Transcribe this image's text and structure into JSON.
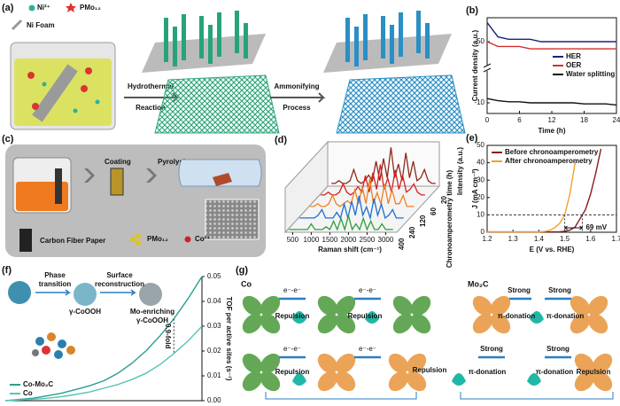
{
  "panel_a": {
    "label": "(a)",
    "legend": [
      "Ni²⁺",
      "PMo₁₂",
      "Ni Foam"
    ],
    "step_1": [
      "Hydrothermal",
      "Reaction"
    ],
    "step_2": [
      "Ammonifying",
      "Process"
    ]
  },
  "panel_c": {
    "label": "(c)",
    "steps": [
      "Coating",
      "Pyrolysis"
    ],
    "legend": [
      "Carbon Fiber Paper",
      "PMo₁₂",
      "Co²⁺"
    ]
  },
  "panel_f": {
    "label": "(f)",
    "step_1": [
      "Phase",
      "transition"
    ],
    "step_2": [
      "Surface",
      "reconstruction"
    ],
    "product_1": "γ-CoOOH",
    "product_2": [
      "Mo-enriching",
      "γ-CoOOH"
    ]
  },
  "panel_g": {
    "label": "(g)",
    "titles": [
      "Co",
      "Mo₂C"
    ],
    "electron_pair": "e⁻-e⁻",
    "repulsion": "Repulsion",
    "strong": "Strong",
    "donation": "π-donation"
  },
  "chart_data": [
    {
      "type": "line",
      "label": "(b)",
      "xlabel": "Time (h)",
      "ylabel": "Current density (a.u.)",
      "x": [
        0,
        2,
        4,
        6,
        8,
        10,
        12,
        14,
        16,
        18,
        20,
        22,
        24
      ],
      "xlim": [
        0,
        24
      ],
      "xticks": [
        0,
        6,
        12,
        18,
        24
      ],
      "ylim": [
        -15,
        60
      ],
      "ybreak": [
        5,
        40
      ],
      "yticks": [
        -10,
        50
      ],
      "legend": "center right",
      "series": [
        {
          "name": "HER",
          "color": "#1a237e",
          "values": [
            58,
            52,
            51,
            51,
            51,
            50,
            50,
            50,
            50,
            50,
            50,
            50,
            50
          ]
        },
        {
          "name": "OER",
          "color": "#d32f2f",
          "values": [
            50,
            48,
            48,
            48,
            47,
            47,
            47,
            47,
            47,
            47,
            47,
            47,
            47
          ]
        },
        {
          "name": "Water splitting",
          "color": "#111111",
          "values": [
            -8,
            -9,
            -9.5,
            -9.5,
            -10,
            -10,
            -10,
            -10,
            -10,
            -10.5,
            -10.5,
            -10.5,
            -11
          ]
        }
      ]
    },
    {
      "type": "waterfall",
      "label": "(d)",
      "xlabel": "Raman shift (cm⁻¹)",
      "ylabel": "Intensity (a.u.)",
      "zlabel": "Chronoamperometry time (h)",
      "x": [
        400,
        500,
        600,
        700,
        800,
        900,
        1000,
        1100,
        1200,
        1300,
        1400,
        1500,
        1600,
        1700,
        1800,
        1900,
        2000,
        2100,
        2200,
        2300,
        2400,
        2500,
        2600,
        2700,
        2800,
        2900,
        3000,
        3100,
        3200
      ],
      "xlim": [
        300,
        3300
      ],
      "xticks": [
        500,
        1000,
        1500,
        2000,
        2500,
        3000
      ],
      "ylim": [
        0,
        16
      ],
      "zticks": [
        400,
        240,
        120,
        60,
        20
      ],
      "series": [
        {
          "color": "#2e9e3e",
          "values": [
            1,
            1,
            1,
            1,
            1,
            1,
            3,
            1,
            1,
            1,
            2,
            1,
            4,
            1,
            5,
            1,
            6,
            1,
            3,
            1,
            5,
            1,
            4,
            1,
            1,
            3,
            1,
            1,
            1
          ]
        },
        {
          "color": "#1f6fd1",
          "values": [
            1,
            1,
            1,
            1,
            1,
            2,
            4,
            1,
            1,
            1,
            3,
            1,
            6,
            1,
            7,
            2,
            9,
            2,
            5,
            1,
            8,
            2,
            6,
            1,
            2,
            4,
            1,
            1,
            1
          ]
        },
        {
          "color": "#f08020",
          "values": [
            1,
            1,
            2,
            1,
            1,
            2,
            5,
            2,
            1,
            2,
            3,
            2,
            7,
            2,
            8,
            2,
            11,
            2,
            6,
            2,
            9,
            2,
            7,
            2,
            2,
            5,
            1,
            1,
            1
          ]
        },
        {
          "color": "#d62020",
          "values": [
            1,
            1,
            2,
            1,
            1,
            2,
            5,
            2,
            1,
            2,
            4,
            2,
            8,
            2,
            9,
            3,
            12,
            3,
            7,
            2,
            10,
            3,
            8,
            2,
            3,
            5,
            2,
            1,
            1
          ]
        },
        {
          "color": "#8b2a1a",
          "values": [
            1,
            1,
            2,
            1,
            1,
            2,
            6,
            2,
            1,
            2,
            4,
            2,
            9,
            2,
            10,
            3,
            14,
            3,
            8,
            2,
            12,
            3,
            9,
            2,
            3,
            6,
            2,
            1,
            1
          ]
        }
      ]
    },
    {
      "type": "line",
      "label": "(e)",
      "xlabel": "E (V vs. RHE)",
      "ylabel": "J (mA cm⁻²)",
      "x": [
        1.2,
        1.22,
        1.24,
        1.26,
        1.28,
        1.3,
        1.32,
        1.34,
        1.36,
        1.38,
        1.4,
        1.42,
        1.44,
        1.46,
        1.48,
        1.5,
        1.52,
        1.54,
        1.56,
        1.58,
        1.6,
        1.62,
        1.64,
        1.66,
        1.68,
        1.7
      ],
      "xlim": [
        1.2,
        1.7
      ],
      "xticks": [
        1.2,
        1.3,
        1.4,
        1.5,
        1.6,
        1.7
      ],
      "ylim": [
        0,
        50
      ],
      "yticks": [
        0,
        10,
        20,
        30,
        40,
        50
      ],
      "hline": 10,
      "annotation": "69 mV",
      "legend": "upper left",
      "series": [
        {
          "name": "Before chronoamperometry",
          "color": "#8b1a1a",
          "values": [
            0.2,
            0.2,
            0.2,
            0.2,
            0.2,
            0.2,
            0.2,
            0.2,
            0.2,
            0.2,
            0.2,
            0.2,
            0.2,
            0.2,
            0.3,
            0.5,
            1.2,
            3,
            8,
            13,
            22,
            34,
            48,
            null,
            null,
            null
          ]
        },
        {
          "name": "After chronoamperometry",
          "color": "#f0a030",
          "values": [
            0.2,
            0.2,
            0.2,
            0.2,
            0.2,
            0.2,
            0.2,
            0.2,
            0.2,
            0.2,
            0.2,
            0.4,
            1,
            2.5,
            5,
            10,
            22,
            40,
            null,
            null,
            null,
            null,
            null,
            null,
            null,
            null
          ]
        }
      ]
    },
    {
      "type": "line",
      "ylabel": "TOF per active sites (s⁻¹)",
      "yaxis": "right",
      "annotation": "0.9-fold",
      "legend": "lower left",
      "ylim": [
        0,
        0.05
      ],
      "yticks": [
        {
          "value": 0,
          "label": "0.00"
        },
        {
          "value": 0.01,
          "label": "0.01"
        },
        {
          "value": 0.02,
          "label": "0.02"
        },
        {
          "value": 0.03,
          "label": "0.03"
        },
        {
          "value": 0.04,
          "label": "0.04"
        },
        {
          "value": 0.05,
          "label": "0.05"
        }
      ],
      "series": [
        {
          "name": "Co-Mo₂C",
          "color": "#2a9d8f",
          "values": [
            0,
            0.0005,
            0.001,
            0.002,
            0.003,
            0.0045,
            0.006,
            0.008,
            0.011,
            0.015,
            0.02,
            0.026,
            0.033,
            0.041,
            0.05
          ]
        },
        {
          "name": "Co",
          "color": "#57c4b5",
          "values": [
            0,
            0.0003,
            0.0006,
            0.001,
            0.0016,
            0.0025,
            0.0035,
            0.005,
            0.0065,
            0.0085,
            0.011,
            0.0145,
            0.019,
            0.024,
            0.03
          ]
        }
      ]
    }
  ]
}
